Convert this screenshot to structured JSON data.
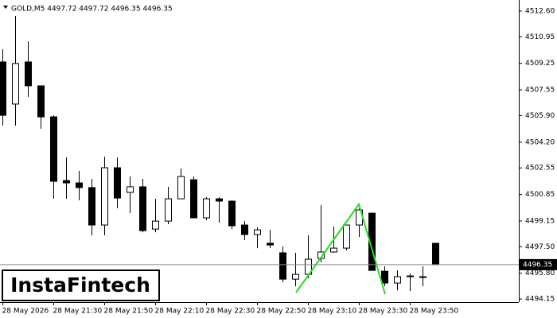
{
  "header": "GOLD,M5  4497.72 4497.72 4496.35 4496.35",
  "watermark": "InstaFintech",
  "chart_data": {
    "type": "candlestick",
    "categories": [
      "28 May 2026",
      null,
      null,
      null,
      "28 May 21:30",
      null,
      null,
      null,
      "28 May 21:50",
      null,
      null,
      null,
      "28 May 22:10",
      null,
      null,
      null,
      "28 May 22:30",
      null,
      null,
      null,
      "28 May 22:50",
      null,
      null,
      null,
      "28 May 23:10",
      null,
      null,
      null,
      "28 May 23:30",
      null,
      null,
      null,
      "28 May 23:50",
      null,
      null
    ],
    "open": [
      4509.34,
      4506.64,
      4509.34,
      4507.81,
      4505.82,
      4501.74,
      4501.59,
      4501.29,
      4498.89,
      4502.56,
      4500.98,
      4501.34,
      4498.63,
      4499.14,
      4500.57,
      4501.79,
      4499.35,
      4500.57,
      4500.42,
      4498.89,
      4498.28,
      4497.72,
      4497.11,
      4495.42,
      4495.73,
      4496.75,
      4497.16,
      4497.41,
      4498.89,
      4499.65,
      4495.93,
      4495.17,
      4495.58,
      4495.53,
      4497.72
    ],
    "high": [
      4510.15,
      4512.29,
      4510.66,
      4507.81,
      4505.92,
      4503.22,
      4502.36,
      4501.85,
      4503.27,
      4503.22,
      4502.0,
      4501.85,
      4500.57,
      4501.34,
      4502.51,
      4502.0,
      4500.67,
      4500.67,
      4500.47,
      4499.14,
      4498.74,
      4498.58,
      4497.51,
      4497.11,
      4498.23,
      4500.16,
      4498.79,
      4498.89,
      4499.96,
      4499.65,
      4496.24,
      4495.98,
      4495.78,
      4496.24,
      4497.72
    ],
    "low": [
      4505.26,
      4505.26,
      4507.1,
      4505.06,
      4500.57,
      4500.57,
      4500.47,
      4498.23,
      4498.23,
      4499.96,
      4499.65,
      4498.43,
      4498.43,
      4498.94,
      4500.57,
      4499.35,
      4499.2,
      4499.04,
      4498.63,
      4497.92,
      4497.41,
      4497.41,
      4495.22,
      4494.96,
      4495.47,
      4496.49,
      4497.11,
      4497.26,
      4498.12,
      4495.98,
      4494.96,
      4494.71,
      4494.66,
      4494.96,
      4496.35
    ],
    "close": [
      4505.92,
      4509.24,
      4507.81,
      4505.82,
      4501.69,
      4501.59,
      4501.29,
      4498.89,
      4502.56,
      4500.62,
      4501.34,
      4498.53,
      4499.14,
      4500.57,
      4502.0,
      4499.35,
      4500.57,
      4500.42,
      4498.84,
      4498.28,
      4498.58,
      4497.61,
      4495.42,
      4495.73,
      4496.7,
      4497.16,
      4497.41,
      4498.89,
      4499.86,
      4495.98,
      4495.17,
      4495.58,
      4495.63,
      4495.58,
      4496.35
    ],
    "last_price": 4496.35,
    "ylim": [
      4493.95,
      4513.31
    ],
    "yticks": [
      {
        "value": 4512.6,
        "label": "4512.60"
      },
      4510.95,
      4509.25,
      4507.55,
      {
        "value": 4505.9,
        "label": "4505.90"
      },
      {
        "value": 4504.2,
        "label": "4504.20"
      },
      4502.55,
      4500.85,
      4499.15,
      {
        "value": 4497.5,
        "label": "4497.50"
      },
      {
        "value": 4495.8,
        "label": "4495.80"
      },
      4494.15
    ]
  }
}
